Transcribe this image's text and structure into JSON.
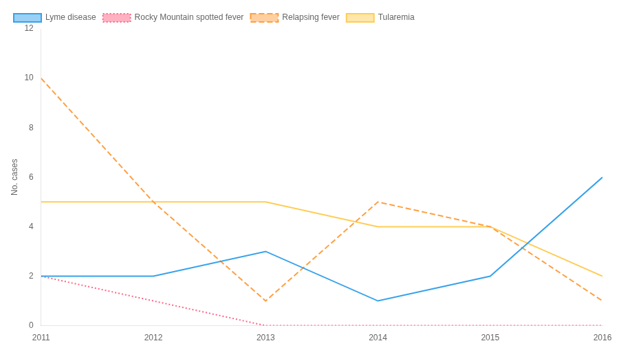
{
  "chart_data": {
    "type": "line",
    "x": [
      2011,
      2012,
      2013,
      2014,
      2015,
      2016
    ],
    "series": [
      {
        "name": "Lyme disease",
        "values": [
          2,
          2,
          3,
          1,
          2,
          6
        ],
        "line_style": "solid"
      },
      {
        "name": "Rocky Mountain spotted fever",
        "values": [
          2,
          1,
          0,
          0,
          0,
          0
        ],
        "line_style": "dotted"
      },
      {
        "name": "Relapsing fever",
        "values": [
          10,
          5,
          1,
          5,
          4,
          1
        ],
        "line_style": "dashed"
      },
      {
        "name": "Tularemia",
        "values": [
          5,
          5,
          5,
          4,
          4,
          2
        ],
        "line_style": "solid"
      }
    ],
    "ylabel": "No. cases",
    "xlim": [
      2011,
      2016
    ],
    "ylim": [
      0,
      12
    ],
    "xticks": [
      2011,
      2012,
      2013,
      2014,
      2015,
      2016
    ],
    "yticks": [
      0,
      2,
      4,
      6,
      8,
      10,
      12
    ],
    "grid": false,
    "legend": "upper left"
  }
}
